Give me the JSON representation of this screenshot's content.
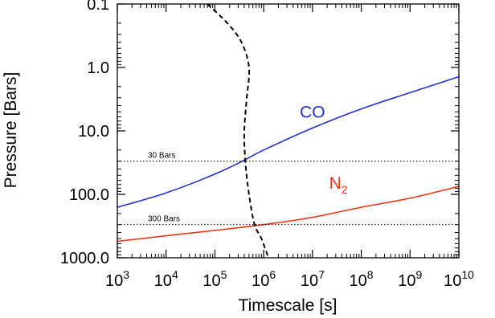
{
  "chart_data": {
    "type": "line",
    "title": "",
    "xlabel": "Timescale [s]",
    "ylabel": "Pressure [Bars]",
    "xscale": "log",
    "yscale": "log",
    "y_inverted": true,
    "xlim": [
      1000,
      10000000000
    ],
    "ylim": [
      0.1,
      1000
    ],
    "grid": false,
    "x_ticks": [
      {
        "value": 1000,
        "base": "10",
        "exp": "3"
      },
      {
        "value": 10000,
        "base": "10",
        "exp": "4"
      },
      {
        "value": 100000,
        "base": "10",
        "exp": "5"
      },
      {
        "value": 1000000,
        "base": "10",
        "exp": "6"
      },
      {
        "value": 10000000,
        "base": "10",
        "exp": "7"
      },
      {
        "value": 100000000,
        "base": "10",
        "exp": "8"
      },
      {
        "value": 1000000000,
        "base": "10",
        "exp": "9"
      },
      {
        "value": 10000000000,
        "base": "10",
        "exp": "10"
      }
    ],
    "y_ticks": [
      {
        "value": 0.1,
        "label": "0.1"
      },
      {
        "value": 1,
        "label": "1.0"
      },
      {
        "value": 10,
        "label": "10.0"
      },
      {
        "value": 100,
        "label": "100.0"
      },
      {
        "value": 1000,
        "label": "1000.0"
      }
    ],
    "series": [
      {
        "name": "CO",
        "label_text": "CO",
        "label_sub": "",
        "color": "#2030d0",
        "style": "solid",
        "x": [
          1000,
          10000,
          100000,
          400000,
          1000000,
          10000000,
          100000000,
          1000000000,
          10000000000
        ],
        "y": [
          160,
          95,
          48,
          29,
          20,
          9,
          4.5,
          2.5,
          1.4
        ]
      },
      {
        "name": "N2",
        "label_text": "N",
        "label_sub": "2",
        "color": "#e83818",
        "style": "solid",
        "x": [
          1000,
          10000,
          100000,
          1000000,
          10000000,
          100000000,
          1000000000,
          10000000000
        ],
        "y": [
          550,
          450,
          370,
          300,
          230,
          160,
          115,
          75
        ]
      },
      {
        "style": "dashed",
        "color": "#000000",
        "x": [
          70000,
          180000,
          350000,
          500000,
          450000,
          400000,
          420000,
          500000,
          650000,
          900000,
          1250000
        ],
        "y": [
          0.1,
          0.2,
          0.4,
          1,
          3,
          10,
          30,
          100,
          300,
          500,
          1000
        ]
      }
    ],
    "annotations": [
      {
        "text": "30 Bars",
        "kind": "hline",
        "y": 30,
        "style": "dotted"
      },
      {
        "text": "300 Bars",
        "kind": "hline",
        "y": 300,
        "style": "dotted"
      }
    ]
  }
}
